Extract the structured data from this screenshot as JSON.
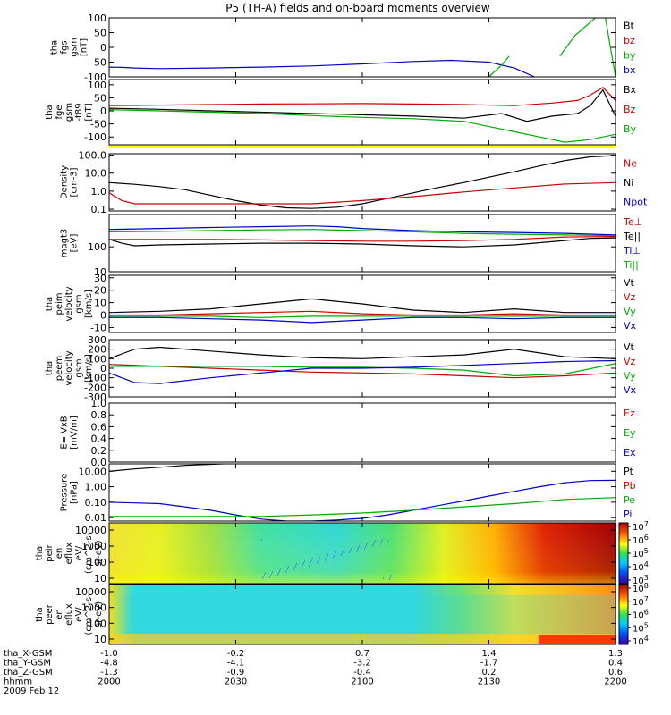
{
  "title": "P5 (TH-A) fields and on-board moments overview",
  "chart_data": [
    {
      "type": "line",
      "ylabel": [
        "tha",
        "fgs",
        "gsm",
        "[nT]"
      ],
      "yticks": [
        "100",
        "50",
        "0",
        "-50",
        "-100"
      ],
      "ylim": [
        -100,
        100
      ],
      "legend": [
        {
          "label": "Bt",
          "color": "#000000"
        },
        {
          "label": "bz",
          "color": "#cc0000"
        },
        {
          "label": "by",
          "color": "#00aa00"
        },
        {
          "label": "bx",
          "color": "#0000cc"
        }
      ],
      "series": [
        {
          "color": "#0000cc",
          "x": [
            0,
            5,
            10,
            20,
            40,
            60,
            80,
            100,
            120,
            135,
            150,
            160,
            168
          ],
          "y": [
            -67,
            -68,
            -70,
            -72,
            -70,
            -67,
            -63,
            -56,
            -48,
            -44,
            -50,
            -70,
            -100
          ]
        },
        {
          "color": "#00aa00",
          "x": [
            150,
            155,
            158
          ],
          "y": [
            -100,
            -60,
            -30
          ]
        },
        {
          "color": "#00aa00",
          "x": [
            178,
            184,
            192
          ],
          "y": [
            -30,
            40,
            100
          ]
        },
        {
          "color": "#00aa00",
          "x": [
            196,
            200
          ],
          "y": [
            100,
            -100
          ]
        }
      ]
    },
    {
      "type": "line",
      "ylabel": [
        "tha",
        "fge",
        "gsm",
        "-t89",
        "[nT]"
      ],
      "yticks": [
        "100",
        "50",
        "0",
        "-50",
        "-100"
      ],
      "ylim": [
        -130,
        120
      ],
      "legend": [
        {
          "label": "Bx",
          "color": "#000000"
        },
        {
          "label": "Bz",
          "color": "#cc0000"
        },
        {
          "label": "By",
          "color": "#00aa00"
        }
      ],
      "series": [
        {
          "color": "#cc0000",
          "x": [
            0,
            20,
            40,
            60,
            80,
            100,
            120,
            140,
            160,
            175,
            185,
            190,
            195,
            200
          ],
          "y": [
            20,
            22,
            24,
            26,
            27,
            28,
            26,
            24,
            20,
            30,
            40,
            60,
            90,
            40
          ]
        },
        {
          "color": "#000000",
          "x": [
            0,
            20,
            40,
            60,
            80,
            100,
            120,
            140,
            155,
            165,
            175,
            185,
            190,
            195,
            200
          ],
          "y": [
            10,
            6,
            0,
            -5,
            -10,
            -15,
            -20,
            -28,
            -10,
            -40,
            -20,
            -10,
            20,
            80,
            -20
          ]
        },
        {
          "color": "#00aa00",
          "x": [
            0,
            20,
            40,
            60,
            80,
            100,
            120,
            140,
            150,
            160,
            170,
            180,
            190,
            200
          ],
          "y": [
            5,
            0,
            -5,
            -10,
            -18,
            -25,
            -30,
            -40,
            -60,
            -80,
            -100,
            -120,
            -110,
            -90
          ]
        }
      ]
    },
    {
      "type": "line",
      "ylabel": [
        "Density",
        "[cm-3]"
      ],
      "yticks": [
        "100.0",
        "10.0",
        "1.0",
        "0.1"
      ],
      "ylog": true,
      "ylim": [
        0.08,
        120
      ],
      "legend": [
        {
          "label": "Ne",
          "color": "#cc0000"
        },
        {
          "label": "Ni",
          "color": "#000000"
        },
        {
          "label": "Npot",
          "color": "#0000cc"
        }
      ],
      "series": [
        {
          "color": "#000000",
          "x": [
            0,
            10,
            20,
            30,
            40,
            50,
            60,
            70,
            80,
            90,
            100,
            110,
            120,
            130,
            140,
            150,
            160,
            170,
            180,
            190,
            200
          ],
          "y": [
            3,
            2.4,
            1.8,
            1.2,
            0.6,
            0.3,
            0.17,
            0.12,
            0.11,
            0.13,
            0.2,
            0.4,
            0.8,
            1.6,
            3,
            6,
            12,
            25,
            50,
            80,
            95
          ]
        },
        {
          "color": "#cc0000",
          "x": [
            0,
            5,
            10,
            20,
            40,
            60,
            80,
            100,
            120,
            140,
            160,
            180,
            200
          ],
          "y": [
            0.8,
            0.3,
            0.2,
            0.2,
            0.2,
            0.2,
            0.2,
            0.3,
            0.5,
            0.9,
            1.5,
            2.5,
            3
          ]
        }
      ]
    },
    {
      "type": "line",
      "ylabel": [
        "magt3",
        "[eV]"
      ],
      "yticks": [
        "100",
        "10"
      ],
      "ylog": true,
      "ylim": [
        10,
        2000
      ],
      "legend": [
        {
          "label": "Te⊥",
          "color": "#cc0000"
        },
        {
          "label": "Te||",
          "color": "#000000"
        },
        {
          "label": "Ti⊥",
          "color": "#0000cc"
        },
        {
          "label": "Ti||",
          "color": "#00aa00"
        }
      ],
      "series": [
        {
          "color": "#0000cc",
          "x": [
            0,
            20,
            40,
            60,
            80,
            90,
            100,
            120,
            140,
            160,
            180,
            200
          ],
          "y": [
            500,
            550,
            600,
            650,
            700,
            650,
            550,
            450,
            400,
            380,
            350,
            300
          ]
        },
        {
          "color": "#00aa00",
          "x": [
            0,
            20,
            40,
            60,
            80,
            100,
            120,
            140,
            160,
            180,
            200
          ],
          "y": [
            400,
            420,
            450,
            480,
            500,
            450,
            400,
            350,
            320,
            300,
            280
          ]
        },
        {
          "color": "#cc0000",
          "x": [
            0,
            10,
            20,
            40,
            60,
            80,
            100,
            120,
            140,
            160,
            180,
            200
          ],
          "y": [
            200,
            200,
            200,
            200,
            190,
            180,
            170,
            170,
            180,
            200,
            250,
            260
          ]
        },
        {
          "color": "#000000",
          "x": [
            0,
            5,
            10,
            20,
            40,
            60,
            80,
            100,
            120,
            140,
            160,
            180,
            190,
            200
          ],
          "y": [
            200,
            140,
            110,
            120,
            130,
            140,
            140,
            130,
            110,
            100,
            120,
            180,
            220,
            230
          ]
        }
      ]
    },
    {
      "type": "line",
      "ylabel": [
        "tha",
        "peim",
        "velocity",
        "gsm",
        "[km/s]"
      ],
      "yticks": [
        "30",
        "20",
        "10",
        "0",
        "-10"
      ],
      "ylim": [
        -14,
        32
      ],
      "legend": [
        {
          "label": "Vt",
          "color": "#000000"
        },
        {
          "label": "Vz",
          "color": "#cc0000"
        },
        {
          "label": "Vy",
          "color": "#00aa00"
        },
        {
          "label": "Vx",
          "color": "#0000cc"
        }
      ],
      "series": [
        {
          "color": "#000000",
          "x": [
            0,
            20,
            40,
            60,
            80,
            100,
            120,
            140,
            160,
            180,
            200
          ],
          "y": [
            2,
            3,
            5,
            9,
            13,
            9,
            4,
            2,
            5,
            2,
            2
          ]
        },
        {
          "color": "#cc0000",
          "x": [
            0,
            20,
            40,
            60,
            80,
            100,
            120,
            140,
            160,
            180,
            200
          ],
          "y": [
            0,
            0,
            1,
            2,
            3,
            1,
            0,
            0,
            1,
            0,
            0
          ]
        },
        {
          "color": "#00aa00",
          "x": [
            0,
            20,
            40,
            60,
            80,
            100,
            120,
            140,
            160,
            180,
            200
          ],
          "y": [
            -1,
            -1,
            -1,
            -2,
            -1,
            -1,
            -1,
            -1,
            -1,
            -1,
            -1
          ]
        },
        {
          "color": "#0000cc",
          "x": [
            0,
            20,
            40,
            60,
            80,
            100,
            120,
            140,
            160,
            180,
            200
          ],
          "y": [
            -2,
            -2,
            -3,
            -4,
            -6,
            -4,
            -2,
            -2,
            -3,
            -2,
            -2
          ]
        }
      ]
    },
    {
      "type": "line",
      "ylabel": [
        "tha",
        "peem",
        "velocity",
        "gsm",
        "[km/s]"
      ],
      "yticks": [
        "300",
        "200",
        "100",
        "0",
        "-100",
        "-200",
        "-300"
      ],
      "ylim": [
        -300,
        300
      ],
      "legend": [
        {
          "label": "Vt",
          "color": "#000000"
        },
        {
          "label": "Vz",
          "color": "#cc0000"
        },
        {
          "label": "Vy",
          "color": "#00aa00"
        },
        {
          "label": "Vx",
          "color": "#0000cc"
        }
      ],
      "series": [
        {
          "color": "#000000",
          "x": [
            0,
            5,
            10,
            20,
            40,
            60,
            80,
            100,
            120,
            140,
            150,
            160,
            170,
            180,
            200
          ],
          "y": [
            100,
            150,
            200,
            220,
            180,
            140,
            110,
            100,
            120,
            140,
            170,
            200,
            160,
            120,
            100
          ]
        },
        {
          "color": "#cc0000",
          "x": [
            0,
            20,
            40,
            60,
            80,
            100,
            120,
            140,
            160,
            180,
            200
          ],
          "y": [
            40,
            20,
            0,
            -20,
            -40,
            -50,
            -60,
            -80,
            -100,
            -80,
            -50
          ]
        },
        {
          "color": "#00aa00",
          "x": [
            0,
            20,
            40,
            60,
            80,
            100,
            120,
            140,
            160,
            180,
            200
          ],
          "y": [
            20,
            20,
            20,
            20,
            10,
            10,
            0,
            -20,
            -80,
            -60,
            50
          ]
        },
        {
          "color": "#0000cc",
          "x": [
            0,
            5,
            10,
            20,
            40,
            60,
            80,
            100,
            120,
            140,
            160,
            180,
            200
          ],
          "y": [
            -50,
            -100,
            -150,
            -160,
            -100,
            -50,
            0,
            0,
            10,
            30,
            50,
            70,
            80
          ]
        }
      ]
    },
    {
      "type": "line",
      "ylabel": [
        "E=-VxB",
        "[mV/m]"
      ],
      "yticks": [
        "1.0",
        "0.8",
        "0.6",
        "0.4",
        "0.2",
        "0.0"
      ],
      "ylim": [
        0,
        1
      ],
      "legend": [
        {
          "label": "Ez",
          "color": "#cc0000"
        },
        {
          "label": "Ey",
          "color": "#00aa00"
        },
        {
          "label": "Ex",
          "color": "#0000cc"
        }
      ],
      "series": []
    },
    {
      "type": "line",
      "ylabel": [
        "Pressure",
        "[nPa]"
      ],
      "yticks": [
        "10.00",
        "1.00",
        "0.10",
        "0.01"
      ],
      "ylog": true,
      "ylim": [
        0.006,
        30
      ],
      "legend": [
        {
          "label": "Pt",
          "color": "#000000"
        },
        {
          "label": "Pb",
          "color": "#cc0000"
        },
        {
          "label": "Pe",
          "color": "#00aa00"
        },
        {
          "label": "Pi",
          "color": "#0000cc"
        }
      ],
      "series": [
        {
          "color": "#000000",
          "x": [
            0,
            10,
            20,
            30,
            40,
            50,
            55
          ],
          "y": [
            10,
            14,
            18,
            24,
            28,
            32,
            35
          ]
        },
        {
          "color": "#0000cc",
          "x": [
            0,
            10,
            20,
            30,
            40,
            50,
            60,
            70,
            80,
            90,
            100,
            110,
            120,
            130,
            140,
            150,
            160,
            170,
            180,
            190,
            200
          ],
          "y": [
            0.1,
            0.09,
            0.08,
            0.05,
            0.03,
            0.015,
            0.008,
            0.006,
            0.006,
            0.007,
            0.009,
            0.015,
            0.03,
            0.06,
            0.12,
            0.25,
            0.5,
            1.0,
            1.8,
            2.5,
            2.6
          ]
        },
        {
          "color": "#00aa00",
          "x": [
            0,
            10,
            20,
            40,
            60,
            80,
            100,
            120,
            140,
            160,
            180,
            200
          ],
          "y": [
            0.012,
            0.012,
            0.012,
            0.012,
            0.012,
            0.015,
            0.02,
            0.03,
            0.05,
            0.08,
            0.15,
            0.2
          ]
        }
      ]
    },
    {
      "type": "heatmap",
      "ylabel": [
        "tha",
        "peir",
        "en",
        "eflux",
        "eV/",
        "(cm^2-s-",
        "sr-eV)"
      ],
      "yticks": [
        "10000",
        "1000",
        "100",
        "10"
      ],
      "colorbar_ticks": [
        "10^7",
        "10^6",
        "10^5",
        "10^4",
        "10^3"
      ]
    },
    {
      "type": "heatmap",
      "ylabel": [
        "tha",
        "peer",
        "en",
        "eflux",
        "eV/",
        "(cm^2-s-",
        "sr-eV)"
      ],
      "yticks": [
        "10000",
        "1000",
        "100",
        "10"
      ],
      "colorbar_ticks": [
        "10^8",
        "10^7",
        "10^6",
        "10^5",
        "10^4"
      ]
    }
  ],
  "xaxis": {
    "ticks": [
      0,
      30,
      60,
      90,
      120
    ],
    "rows": [
      {
        "label": "tha_X-GSM",
        "values": [
          "-1.0",
          "-0.2",
          "0.7",
          "1.4",
          "1.3"
        ]
      },
      {
        "label": "tha_Y-GSM",
        "values": [
          "-4.8",
          "-4.1",
          "-3.2",
          "-1.7",
          "0.4"
        ]
      },
      {
        "label": "tha_Z-GSM",
        "values": [
          "-1.3",
          "-0.9",
          "-0.4",
          "0.2",
          "0.6"
        ]
      },
      {
        "label": "hhmm",
        "values": [
          "2000",
          "2030",
          "2100",
          "2130",
          "2200"
        ]
      }
    ],
    "date": "2009 Feb 12"
  }
}
